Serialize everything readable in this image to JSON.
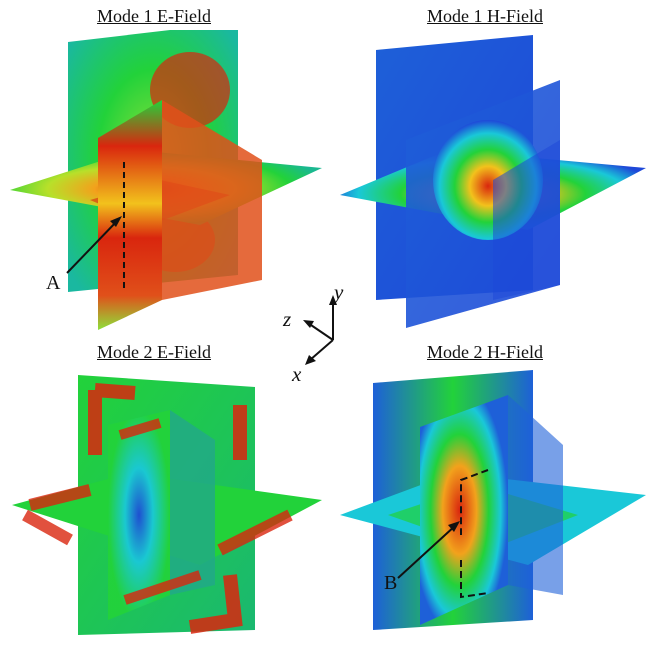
{
  "panels": [
    {
      "title": "Mode 1 E-Field",
      "scheme": "e1"
    },
    {
      "title": "Mode 1 H-Field",
      "scheme": "h1"
    },
    {
      "title": "Mode 2 E-Field",
      "scheme": "e2"
    },
    {
      "title": "Mode 2 H-Field",
      "scheme": "h2"
    }
  ],
  "markers": {
    "a": "A",
    "b": "B"
  },
  "axes": {
    "x": "x",
    "y": "y",
    "z": "z"
  },
  "colors": {
    "low": "#1e48d8",
    "mid": "#22d23a",
    "high": "#d9260e",
    "warm": "#f2c21c",
    "cyan": "#1ac8d8"
  }
}
